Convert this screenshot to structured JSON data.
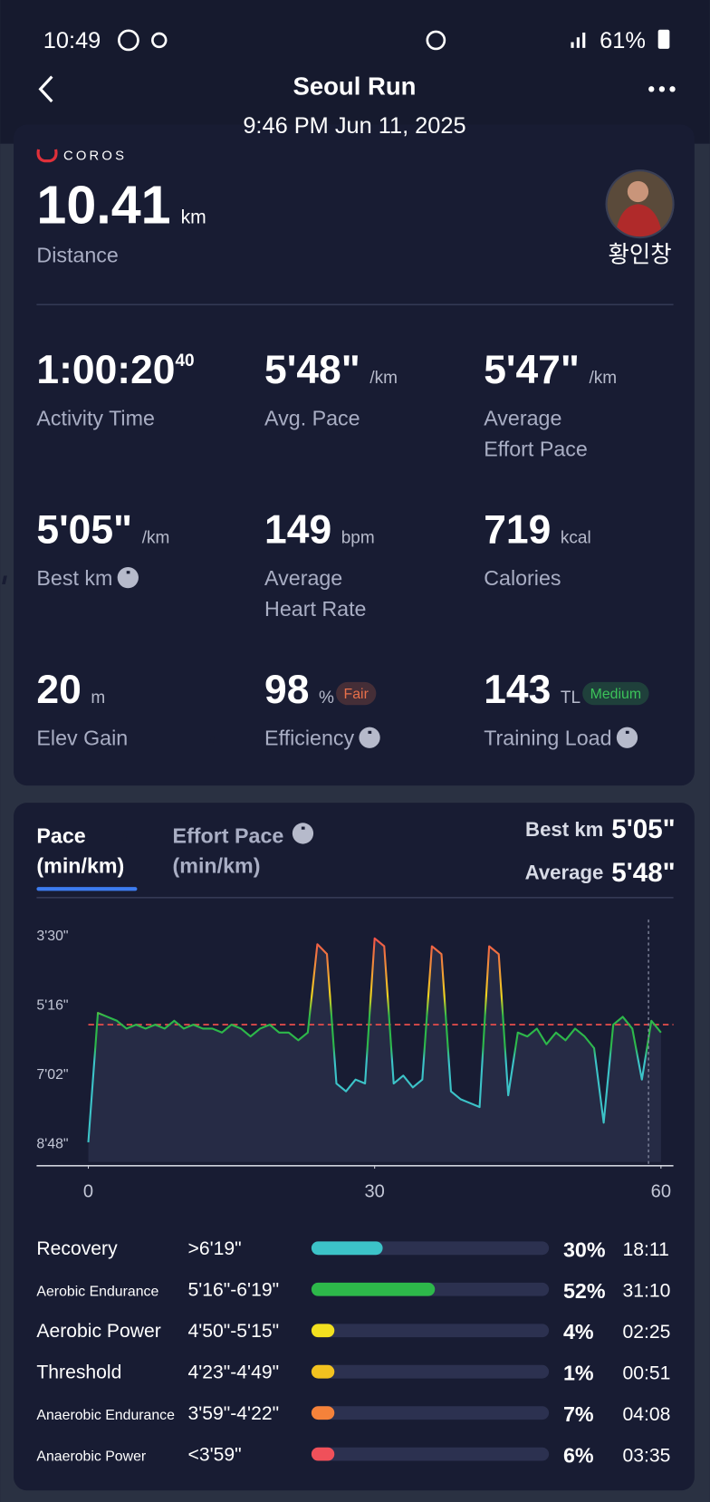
{
  "status_bar": {
    "time": "10:49",
    "battery": "61%"
  },
  "header": {
    "title": "Seoul Run",
    "subtitle": "9:46 PM Jun 11, 2025"
  },
  "summary": {
    "brand": "COROS",
    "distance": "10.41",
    "distance_unit": "km",
    "distance_label": "Distance",
    "athlete": "황인창"
  },
  "stats": [
    {
      "value": "1:00:20",
      "sup": "40",
      "label": [
        "Activity Time"
      ]
    },
    {
      "value": "5'48\"",
      "unit": "/km",
      "label": [
        "Avg. Pace"
      ]
    },
    {
      "value": "5'47\"",
      "unit": "/km",
      "label": [
        "Average",
        "Effort Pace"
      ]
    },
    {
      "value": "5'05\"",
      "unit": "/km",
      "label": [
        "Best km"
      ],
      "info": true
    },
    {
      "value": "149",
      "unit": "bpm",
      "label": [
        "Average",
        "Heart Rate"
      ]
    },
    {
      "value": "719",
      "unit": "kcal",
      "label": [
        "Calories"
      ]
    },
    {
      "value": "20",
      "unit": "m",
      "label": [
        "Elev Gain"
      ]
    },
    {
      "value": "98",
      "unit": "%",
      "badge": "Fair",
      "badge_color": "#e8704a",
      "label": [
        "Efficiency"
      ],
      "info": true
    },
    {
      "value": "143",
      "unit": "TL",
      "badge": "Medium",
      "badge_color": "#3cc35a",
      "label": [
        "Training Load"
      ],
      "info": true
    }
  ],
  "chart_data": {
    "type": "line",
    "tabs": [
      {
        "label": "Pace",
        "unit": "(min/km)"
      },
      {
        "label": "Effort Pace",
        "unit": "(min/km)",
        "info": true
      }
    ],
    "best_label": "Best km",
    "best_value": "5'05\"",
    "avg_label": "Average",
    "average": {
      "value": 5.8,
      "label": "5'48\""
    },
    "x": [
      0,
      1,
      2,
      3,
      4,
      5,
      6,
      7,
      8,
      9,
      10,
      11,
      12,
      13,
      14,
      15,
      16,
      17,
      18,
      19,
      20,
      21,
      22,
      23,
      24,
      25,
      26,
      27,
      28,
      29,
      30,
      31,
      32,
      33,
      34,
      35,
      36,
      37,
      38,
      39,
      40,
      41,
      42,
      43,
      44,
      45,
      46,
      47,
      48,
      49,
      50,
      51,
      52,
      53,
      54,
      55,
      56,
      57,
      58,
      59,
      60
    ],
    "values": [
      8.8,
      5.5,
      5.6,
      5.7,
      5.9,
      5.8,
      5.9,
      5.8,
      5.9,
      5.7,
      5.9,
      5.8,
      5.9,
      5.9,
      6.0,
      5.8,
      5.9,
      6.1,
      5.9,
      5.8,
      6.0,
      6.0,
      6.2,
      6.0,
      3.75,
      4.0,
      7.3,
      7.5,
      7.2,
      7.3,
      3.6,
      3.8,
      7.3,
      7.1,
      7.4,
      7.2,
      3.8,
      4.0,
      7.5,
      7.7,
      7.8,
      7.9,
      3.8,
      4.0,
      7.6,
      6.0,
      6.1,
      5.9,
      6.3,
      6.0,
      6.2,
      5.9,
      6.1,
      6.4,
      8.3,
      5.8,
      5.6,
      5.9,
      7.2,
      5.7,
      6.0
    ],
    "xlim": [
      0,
      60
    ],
    "xticks": [
      0,
      30,
      60
    ],
    "ylim": [
      3.0,
      9.3
    ],
    "y_inverted": true,
    "yticks": [
      {
        "value": 3.5,
        "label": "3'30\""
      },
      {
        "value": 5.2667,
        "label": "5'16\""
      },
      {
        "value": 7.0333,
        "label": "7'02\""
      },
      {
        "value": 8.8,
        "label": "8'48\""
      }
    ],
    "average_color": "#d94a4a"
  },
  "zones": [
    {
      "name": "Recovery",
      "range": ">6'19\"",
      "percent": 30,
      "percent_label": "30%",
      "time": "18:11",
      "color": "#3cc3c8",
      "small": false
    },
    {
      "name": "Aerobic Endurance",
      "range": "5'16\"-6'19\"",
      "percent": 52,
      "percent_label": "52%",
      "time": "31:10",
      "color": "#2db84a",
      "small": true
    },
    {
      "name": "Aerobic Power",
      "range": "4'50\"-5'15\"",
      "percent": 4,
      "percent_label": "4%",
      "time": "02:25",
      "color": "#f2e01f",
      "small": false
    },
    {
      "name": "Threshold",
      "range": "4'23\"-4'49\"",
      "percent": 1,
      "percent_label": "1%",
      "time": "00:51",
      "color": "#f2c21f",
      "small": false
    },
    {
      "name": "Anaerobic Endurance",
      "range": "3'59\"-4'22\"",
      "percent": 7,
      "percent_label": "7%",
      "time": "04:08",
      "color": "#f5823a",
      "small": true
    },
    {
      "name": "Anaerobic Power",
      "range": "<3'59\"",
      "percent": 6,
      "percent_label": "6%",
      "time": "03:35",
      "color": "#f0505a",
      "small": true
    }
  ]
}
